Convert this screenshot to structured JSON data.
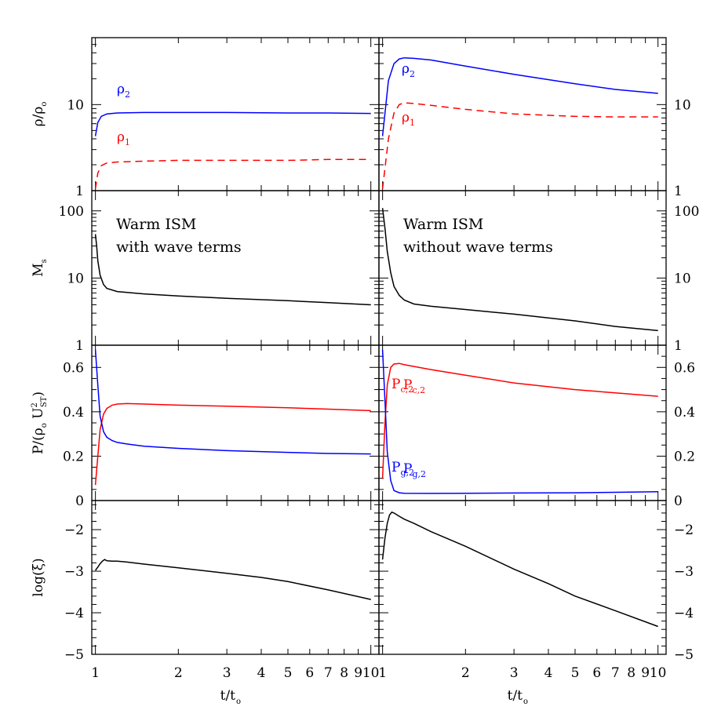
{
  "figure": {
    "x_axis_label": "t/t",
    "x_axis_label_sub": "o",
    "x_ticks": [
      1,
      2,
      3,
      4,
      5,
      6,
      7,
      8,
      9,
      10
    ],
    "x_tick_labels": [
      "1",
      "2",
      "3",
      "4",
      "5",
      "6",
      "7",
      "8",
      "9",
      "10"
    ],
    "colors": {
      "blue": "#0000ff",
      "red": "#ff0000",
      "black": "#000000"
    }
  },
  "chart_data": [
    {
      "type": "line",
      "panel": "rho-with-wave",
      "ylabel": "ρ/ρ",
      "ylabel_sub": "o",
      "yscale": "log",
      "ylim": [
        1,
        60
      ],
      "xscale": "log",
      "xlim": [
        0.97,
        10.7
      ],
      "y_tick_labels": [
        "1",
        "10"
      ],
      "series": [
        {
          "name": "ρ",
          "name_sub": "2",
          "color": "#0000ff",
          "dash": false,
          "x": [
            1.0,
            1.02,
            1.05,
            1.1,
            1.2,
            1.5,
            2,
            3,
            5,
            7,
            10
          ],
          "y": [
            4.3,
            6.2,
            7.3,
            7.8,
            8.0,
            8.1,
            8.1,
            8.1,
            8.0,
            8.0,
            7.9
          ]
        },
        {
          "name": "ρ",
          "name_sub": "1",
          "color": "#ff0000",
          "dash": true,
          "x": [
            1.0,
            1.02,
            1.05,
            1.1,
            1.2,
            1.5,
            2,
            3,
            5,
            7,
            10
          ],
          "y": [
            1.05,
            1.6,
            1.95,
            2.1,
            2.15,
            2.2,
            2.25,
            2.25,
            2.25,
            2.3,
            2.3
          ]
        }
      ]
    },
    {
      "type": "line",
      "panel": "rho-without-wave",
      "ylabel": "",
      "yscale": "log",
      "ylim": [
        1,
        60
      ],
      "xscale": "log",
      "xlim": [
        0.97,
        10.7
      ],
      "y_tick_labels": [
        "1",
        "10"
      ],
      "series": [
        {
          "name": "ρ",
          "name_sub": "2",
          "color": "#0000ff",
          "dash": false,
          "x": [
            1.0,
            1.05,
            1.1,
            1.15,
            1.2,
            1.3,
            1.5,
            2,
            3,
            5,
            7,
            10
          ],
          "y": [
            4.3,
            19,
            30,
            34,
            35,
            34.5,
            33,
            28,
            22.5,
            17.5,
            15,
            13.5
          ]
        },
        {
          "name": "ρ",
          "name_sub": "1",
          "color": "#ff0000",
          "dash": true,
          "x": [
            1.0,
            1.05,
            1.1,
            1.15,
            1.2,
            1.3,
            1.5,
            2,
            3,
            5,
            7,
            10
          ],
          "y": [
            1.05,
            4,
            8,
            10,
            10.5,
            10.3,
            9.8,
            8.8,
            7.8,
            7.3,
            7.2,
            7.2
          ]
        }
      ]
    },
    {
      "type": "line",
      "panel": "mach-with-wave",
      "ylabel": "M",
      "ylabel_sub": "s",
      "yscale": "log",
      "ylim": [
        1,
        200
      ],
      "xscale": "log",
      "xlim": [
        0.97,
        10.7
      ],
      "y_tick_labels": [
        "1",
        "10",
        "100"
      ],
      "annotation": [
        "Warm ISM",
        "with wave terms"
      ],
      "series": [
        {
          "name": "",
          "color": "#000000",
          "dash": false,
          "x": [
            1.0,
            1.01,
            1.02,
            1.04,
            1.07,
            1.1,
            1.2,
            1.5,
            2,
            3,
            5,
            7,
            10
          ],
          "y": [
            45,
            30,
            18,
            11,
            8,
            7,
            6.3,
            5.8,
            5.4,
            5.0,
            4.6,
            4.3,
            4.0
          ]
        }
      ]
    },
    {
      "type": "line",
      "panel": "mach-without-wave",
      "ylabel": "",
      "yscale": "log",
      "ylim": [
        1,
        200
      ],
      "xscale": "log",
      "xlim": [
        0.97,
        10.7
      ],
      "y_tick_labels": [
        "1",
        "10",
        "100"
      ],
      "annotation": [
        "Warm ISM",
        "without wave terms"
      ],
      "series": [
        {
          "name": "",
          "color": "#000000",
          "dash": false,
          "x": [
            1.0,
            1.02,
            1.04,
            1.07,
            1.1,
            1.15,
            1.2,
            1.3,
            1.5,
            2,
            3,
            5,
            7,
            10
          ],
          "y": [
            110,
            55,
            25,
            12,
            7.5,
            5.5,
            4.7,
            4.1,
            3.8,
            3.4,
            2.9,
            2.3,
            1.9,
            1.65
          ]
        }
      ]
    },
    {
      "type": "line",
      "panel": "pressure-with-wave",
      "ylabel": "P/(ρ",
      "ylabel_sub": "o",
      "ylabel_rest": " U",
      "ylabel_sup2": "2",
      "ylabel_sub2": "ST",
      "ylabel_end": ")",
      "yscale": "linear",
      "ylim": [
        0,
        0.7
      ],
      "xscale": "log",
      "xlim": [
        0.97,
        10.7
      ],
      "y_tick_labels": [
        "0",
        "0.2",
        "0.4",
        "0.6"
      ],
      "series": [
        {
          "name": "P",
          "name_sub": "c,2",
          "color": "#ff0000",
          "dash": false,
          "x": [
            1.0,
            1.02,
            1.04,
            1.07,
            1.1,
            1.15,
            1.2,
            1.3,
            1.5,
            2,
            3,
            5,
            7,
            10
          ],
          "y": [
            0.07,
            0.2,
            0.32,
            0.39,
            0.415,
            0.43,
            0.435,
            0.437,
            0.435,
            0.43,
            0.425,
            0.418,
            0.412,
            0.405
          ]
        },
        {
          "name": "P",
          "name_sub": "g,2",
          "color": "#0000ff",
          "dash": false,
          "x": [
            1.0,
            1.02,
            1.04,
            1.07,
            1.1,
            1.15,
            1.2,
            1.3,
            1.5,
            2,
            3,
            5,
            7,
            10
          ],
          "y": [
            0.68,
            0.52,
            0.38,
            0.31,
            0.285,
            0.27,
            0.262,
            0.255,
            0.245,
            0.235,
            0.225,
            0.217,
            0.212,
            0.21
          ]
        }
      ]
    },
    {
      "type": "line",
      "panel": "pressure-without-wave",
      "ylabel": "",
      "yscale": "linear",
      "ylim": [
        0,
        0.7
      ],
      "xscale": "log",
      "xlim": [
        0.97,
        10.7
      ],
      "y_tick_labels": [
        "0",
        "0.2",
        "0.4",
        "0.6"
      ],
      "series": [
        {
          "name": "P",
          "name_sub": "c,2",
          "color": "#ff0000",
          "dash": false,
          "x": [
            1.0,
            1.02,
            1.04,
            1.07,
            1.1,
            1.15,
            1.2,
            1.5,
            2,
            3,
            5,
            7,
            10
          ],
          "y": [
            0.1,
            0.35,
            0.52,
            0.6,
            0.615,
            0.618,
            0.612,
            0.59,
            0.565,
            0.53,
            0.5,
            0.485,
            0.47
          ]
        },
        {
          "name": "P",
          "name_sub": "g,2",
          "color": "#0000ff",
          "dash": false,
          "x": [
            1.0,
            1.02,
            1.04,
            1.07,
            1.1,
            1.15,
            1.2,
            1.5,
            2,
            3,
            5,
            7,
            10
          ],
          "y": [
            0.68,
            0.45,
            0.22,
            0.09,
            0.045,
            0.035,
            0.033,
            0.032,
            0.033,
            0.034,
            0.035,
            0.037,
            0.04
          ]
        }
      ]
    },
    {
      "type": "line",
      "panel": "xi-with-wave",
      "ylabel": "log(ξ)",
      "yscale": "linear",
      "ylim": [
        -5,
        -1.3
      ],
      "xscale": "log",
      "xlim": [
        0.97,
        10.7
      ],
      "y_tick_labels": [
        "−5",
        "−4",
        "−3",
        "−2"
      ],
      "series": [
        {
          "name": "",
          "color": "#000000",
          "dash": false,
          "x": [
            1.0,
            1.02,
            1.04,
            1.06,
            1.08,
            1.1,
            1.15,
            1.2,
            1.3,
            1.5,
            2,
            3,
            4,
            5,
            7,
            10
          ],
          "y": [
            -2.98,
            -2.9,
            -2.82,
            -2.76,
            -2.72,
            -2.75,
            -2.76,
            -2.76,
            -2.78,
            -2.83,
            -2.92,
            -3.05,
            -3.15,
            -3.25,
            -3.45,
            -3.68
          ]
        }
      ]
    },
    {
      "type": "line",
      "panel": "xi-without-wave",
      "ylabel": "",
      "yscale": "linear",
      "ylim": [
        -5,
        -1.3
      ],
      "xscale": "log",
      "xlim": [
        0.97,
        10.7
      ],
      "y_tick_labels": [
        "−5",
        "−4",
        "−3",
        "−2"
      ],
      "series": [
        {
          "name": "",
          "color": "#000000",
          "dash": false,
          "x": [
            1.0,
            1.02,
            1.04,
            1.06,
            1.08,
            1.1,
            1.15,
            1.2,
            1.3,
            1.5,
            2,
            3,
            4,
            5,
            7,
            10
          ],
          "y": [
            -2.72,
            -2.2,
            -1.85,
            -1.65,
            -1.58,
            -1.6,
            -1.68,
            -1.75,
            -1.85,
            -2.05,
            -2.4,
            -2.95,
            -3.3,
            -3.6,
            -3.95,
            -4.33
          ]
        }
      ]
    }
  ]
}
